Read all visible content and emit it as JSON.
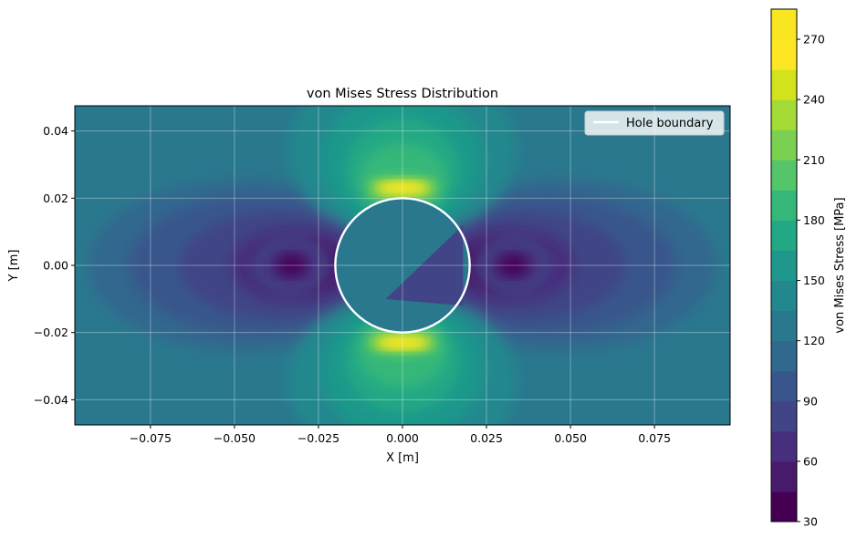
{
  "chart_data": [
    {
      "type": "heatmap",
      "title": "von Mises Stress Distribution",
      "xlabel": "X [m]",
      "ylabel": "Y [m]",
      "xlim": [
        -0.0975,
        0.0975
      ],
      "ylim": [
        -0.0475,
        0.0475
      ],
      "x_ticks": [
        -0.075,
        -0.05,
        -0.025,
        0.0,
        0.025,
        0.05,
        0.075
      ],
      "x_tick_labels": [
        "−0.075",
        "−0.050",
        "−0.025",
        "0.000",
        "0.025",
        "0.050",
        "0.075"
      ],
      "y_ticks": [
        -0.04,
        -0.02,
        0.0,
        0.02,
        0.04
      ],
      "y_tick_labels": [
        "−0.04",
        "−0.02",
        "0.00",
        "0.02",
        "0.04"
      ],
      "grid": true,
      "legend_position": "top-right",
      "legend": [
        {
          "label": "Hole boundary",
          "color": "#ffffff"
        }
      ],
      "hole": {
        "center": [
          0.0,
          0.0
        ],
        "radius": 0.02
      },
      "colormap": "viridis",
      "stress_levels_mpa": [
        30,
        45,
        60,
        75,
        90,
        105,
        120,
        135,
        150,
        165,
        180,
        195,
        210,
        225,
        240,
        255,
        270,
        285
      ],
      "stress_range_mpa": [
        30,
        285
      ],
      "peak_stress_mpa": 280,
      "far_field_stress_mpa": 115,
      "features": [
        {
          "label": "stress concentration top",
          "x": 0.0,
          "y": 0.023,
          "value_mpa": 275
        },
        {
          "label": "stress concentration bottom",
          "x": 0.0,
          "y": -0.023,
          "value_mpa": 275
        },
        {
          "label": "low stress left",
          "x": -0.033,
          "y": 0.0,
          "value_mpa": 40
        },
        {
          "label": "low stress right",
          "x": 0.033,
          "y": 0.0,
          "value_mpa": 40
        }
      ]
    },
    {
      "type": "colorbar",
      "label": "von Mises Stress [MPa]",
      "range": [
        30,
        285
      ],
      "ticks": [
        30,
        60,
        90,
        120,
        150,
        180,
        210,
        240,
        270
      ],
      "tick_labels": [
        "30",
        "60",
        "90",
        "120",
        "150",
        "180",
        "210",
        "240",
        "270"
      ],
      "colors": [
        "#440154",
        "#481a6c",
        "#472f7d",
        "#414487",
        "#39568c",
        "#31688e",
        "#2a788e",
        "#23888e",
        "#1f988b",
        "#22a884",
        "#35b779",
        "#54c568",
        "#7ad151",
        "#a5db36",
        "#d2e21b",
        "#fde725",
        "#f7e620"
      ]
    }
  ]
}
